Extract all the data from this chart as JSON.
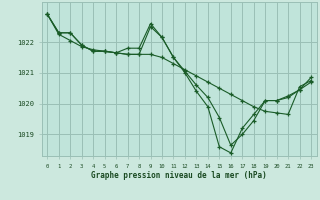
{
  "background_color": "#cce8de",
  "plot_bg_color": "#c0e4da",
  "grid_color": "#9abfb5",
  "line_color": "#1a5c28",
  "title": "Graphe pression niveau de la mer (hPa)",
  "xlim": [
    -0.5,
    23.5
  ],
  "ylim": [
    1018.3,
    1023.3
  ],
  "xticks": [
    0,
    1,
    2,
    3,
    4,
    5,
    6,
    7,
    8,
    9,
    10,
    11,
    12,
    13,
    14,
    15,
    16,
    17,
    18,
    19,
    20,
    21,
    22,
    23
  ],
  "yticks": [
    1019,
    1020,
    1021,
    1022
  ],
  "series": [
    [
      1022.9,
      1022.3,
      1022.3,
      1021.9,
      1021.7,
      1021.7,
      1021.65,
      1021.6,
      1021.6,
      1022.5,
      1022.15,
      1021.5,
      1021.05,
      1020.6,
      1020.2,
      1019.55,
      1018.65,
      1019.0,
      1019.45,
      1020.1,
      1020.1,
      1020.25,
      1020.45,
      1020.7
    ],
    [
      1022.9,
      1022.25,
      1022.05,
      1021.85,
      1021.75,
      1021.7,
      1021.65,
      1021.6,
      1021.6,
      1021.6,
      1021.5,
      1021.3,
      1021.1,
      1020.9,
      1020.7,
      1020.5,
      1020.3,
      1020.1,
      1019.9,
      1019.75,
      1019.7,
      1019.65,
      1020.55,
      1020.75
    ],
    [
      1022.9,
      1022.3,
      1022.3,
      1021.9,
      1021.7,
      1021.7,
      1021.65,
      1021.8,
      1021.8,
      1022.6,
      1022.15,
      1021.5,
      1021.0,
      1020.4,
      1019.9,
      1018.6,
      1018.4,
      1019.2,
      1019.65,
      1020.1,
      1020.1,
      1020.2,
      1020.45,
      1020.85
    ]
  ]
}
